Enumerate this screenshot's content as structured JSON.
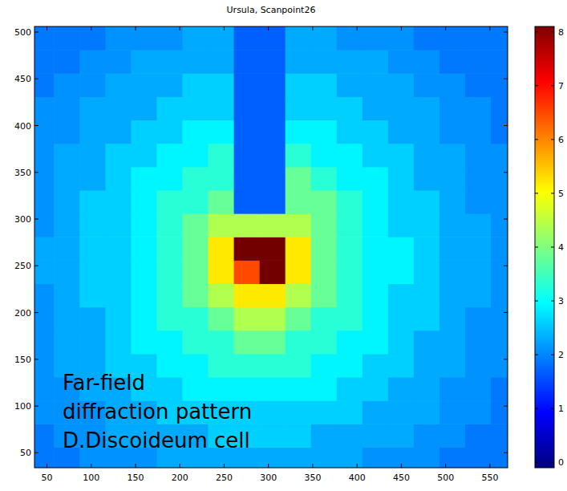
{
  "chart_data": {
    "type": "heatmap",
    "title": "Ursula, Scanpoint26",
    "annotation": [
      "Far-field",
      "diffraction pattern",
      "D.Discoideum cell"
    ],
    "xlim": [
      36,
      570
    ],
    "ylim": [
      34,
      506
    ],
    "xticks": [
      50,
      100,
      150,
      200,
      250,
      300,
      350,
      400,
      450,
      500,
      550
    ],
    "yticks": [
      50,
      100,
      150,
      200,
      250,
      300,
      350,
      400,
      450,
      500
    ],
    "x_edges": [
      0,
      29,
      58,
      87,
      116,
      145,
      174,
      203,
      232,
      261,
      290,
      319,
      348,
      377,
      406,
      435,
      464,
      493,
      522,
      551,
      580
    ],
    "y_edges": [
      6,
      31,
      56,
      81,
      106,
      131,
      156,
      181,
      206,
      231,
      256,
      281,
      306,
      331,
      356,
      381,
      406,
      431,
      456,
      481,
      506
    ],
    "values": [
      [
        1.9,
        1.9,
        1.9,
        1.9,
        2.1,
        2.1,
        2.1,
        2.1,
        2.3,
        2.3,
        2.3,
        2.3,
        2.1,
        2.1,
        2.1,
        2.1,
        1.9,
        1.9,
        1.9,
        1.9
      ],
      [
        1.9,
        1.9,
        1.9,
        2.1,
        2.1,
        2.1,
        2.3,
        2.3,
        2.3,
        2.3,
        2.3,
        2.3,
        2.3,
        2.3,
        2.1,
        2.1,
        2.1,
        1.9,
        1.9,
        1.9
      ],
      [
        1.9,
        1.9,
        2.1,
        2.1,
        2.3,
        2.3,
        2.3,
        2.3,
        2.6,
        2.6,
        2.6,
        2.6,
        2.3,
        2.3,
        2.3,
        2.3,
        2.1,
        2.1,
        1.9,
        1.9
      ],
      [
        1.9,
        2.1,
        2.1,
        2.1,
        2.3,
        2.3,
        2.6,
        2.6,
        2.6,
        2.6,
        2.6,
        2.6,
        2.6,
        2.6,
        2.3,
        2.3,
        2.3,
        2.1,
        2.1,
        1.9
      ],
      [
        1.9,
        2.1,
        2.1,
        2.3,
        2.3,
        2.6,
        2.6,
        2.9,
        2.9,
        2.9,
        2.9,
        2.9,
        2.9,
        2.6,
        2.6,
        2.3,
        2.3,
        2.1,
        2.1,
        1.9
      ],
      [
        2.1,
        2.1,
        2.3,
        2.3,
        2.6,
        2.6,
        2.9,
        2.9,
        3.3,
        3.3,
        3.3,
        3.3,
        2.9,
        2.9,
        2.6,
        2.6,
        2.3,
        2.3,
        2.1,
        2.1
      ],
      [
        2.1,
        2.1,
        2.3,
        2.3,
        2.6,
        2.9,
        2.9,
        3.3,
        3.3,
        3.8,
        3.8,
        3.3,
        3.3,
        2.9,
        2.9,
        2.6,
        2.3,
        2.3,
        2.1,
        2.1
      ],
      [
        2.1,
        2.1,
        2.3,
        2.3,
        2.6,
        2.9,
        3.3,
        3.3,
        3.8,
        4.4,
        4.4,
        3.8,
        3.3,
        3.3,
        2.9,
        2.6,
        2.6,
        2.3,
        2.1,
        2.1
      ],
      [
        2.1,
        2.1,
        2.3,
        2.6,
        2.6,
        2.9,
        3.3,
        3.8,
        4.4,
        5.2,
        5.2,
        4.4,
        3.8,
        3.3,
        2.9,
        2.6,
        2.6,
        2.3,
        2.3,
        2.1
      ],
      [
        2.1,
        2.3,
        2.3,
        2.6,
        2.6,
        2.9,
        3.3,
        3.8,
        5.2,
        6.5,
        8.2,
        5.2,
        3.8,
        3.3,
        2.9,
        2.9,
        2.6,
        2.3,
        2.3,
        2.1
      ],
      [
        2.1,
        2.3,
        2.3,
        2.6,
        2.6,
        2.9,
        3.3,
        3.8,
        5.2,
        8.2,
        8.2,
        5.2,
        3.8,
        3.3,
        2.9,
        2.9,
        2.6,
        2.3,
        2.3,
        2.1
      ],
      [
        2.1,
        2.1,
        2.3,
        2.6,
        2.6,
        2.9,
        3.3,
        3.8,
        4.4,
        4.4,
        4.4,
        4.4,
        3.8,
        3.3,
        2.9,
        2.6,
        2.6,
        2.3,
        2.3,
        2.1
      ],
      [
        2.1,
        2.1,
        2.3,
        2.6,
        2.6,
        2.9,
        3.3,
        3.3,
        3.8,
        1.7,
        1.7,
        3.8,
        3.8,
        3.3,
        2.9,
        2.6,
        2.6,
        2.3,
        2.1,
        2.1
      ],
      [
        2.1,
        2.1,
        2.3,
        2.3,
        2.6,
        2.9,
        2.9,
        3.3,
        3.3,
        1.7,
        1.7,
        3.8,
        3.3,
        2.9,
        2.9,
        2.6,
        2.3,
        2.3,
        2.1,
        2.1
      ],
      [
        2.1,
        2.1,
        2.3,
        2.3,
        2.6,
        2.6,
        2.9,
        2.9,
        3.3,
        1.7,
        1.7,
        3.3,
        2.9,
        2.9,
        2.6,
        2.6,
        2.3,
        2.3,
        2.1,
        2.1
      ],
      [
        1.9,
        2.1,
        2.1,
        2.3,
        2.3,
        2.6,
        2.6,
        2.9,
        2.9,
        1.7,
        1.7,
        2.9,
        2.9,
        2.6,
        2.6,
        2.3,
        2.3,
        2.1,
        2.1,
        1.9
      ],
      [
        1.9,
        2.1,
        2.1,
        2.3,
        2.3,
        2.3,
        2.6,
        2.6,
        2.6,
        1.7,
        1.7,
        2.6,
        2.6,
        2.6,
        2.3,
        2.3,
        2.3,
        2.1,
        2.1,
        1.9
      ],
      [
        1.9,
        1.9,
        2.1,
        2.1,
        2.3,
        2.3,
        2.3,
        2.6,
        2.6,
        1.7,
        1.7,
        2.6,
        2.6,
        2.3,
        2.3,
        2.3,
        2.1,
        2.1,
        1.9,
        1.9
      ],
      [
        1.9,
        1.9,
        1.9,
        2.1,
        2.1,
        2.3,
        2.3,
        2.3,
        2.3,
        1.7,
        1.7,
        2.3,
        2.3,
        2.3,
        2.3,
        2.1,
        2.1,
        1.9,
        1.9,
        1.9
      ],
      [
        1.9,
        1.9,
        1.9,
        1.9,
        2.1,
        2.1,
        2.1,
        2.3,
        2.3,
        1.7,
        1.7,
        2.3,
        2.3,
        2.1,
        2.1,
        2.1,
        1.9,
        1.9,
        1.9,
        1.9
      ]
    ],
    "colorbar_lim": [
      -0.1,
      8.1
    ],
    "colorbar_ticks": [
      0,
      1,
      2,
      3,
      4,
      5,
      6,
      7,
      8
    ]
  }
}
